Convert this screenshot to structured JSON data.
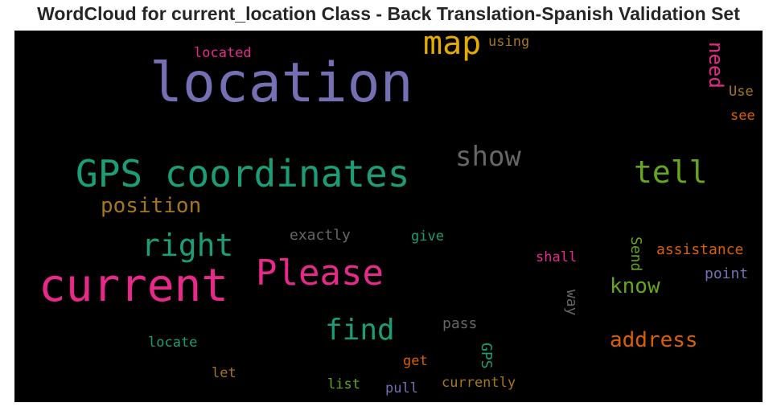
{
  "title": "WordCloud for current_location Class - Back Translation-Spanish Validation Set",
  "background_color": "#000000",
  "words": [
    {
      "key": "location",
      "text": "location",
      "color": "#7570b3"
    },
    {
      "key": "gps_coordinates",
      "text": "GPS coordinates",
      "color": "#1b9e77"
    },
    {
      "key": "current",
      "text": "current",
      "color": "#e7298a"
    },
    {
      "key": "please",
      "text": "Please",
      "color": "#e7298a"
    },
    {
      "key": "map",
      "text": "map",
      "color": "#e6ab02"
    },
    {
      "key": "show",
      "text": "show",
      "color": "#666666"
    },
    {
      "key": "tell",
      "text": "tell",
      "color": "#66a61e"
    },
    {
      "key": "right",
      "text": "right",
      "color": "#1b9e77"
    },
    {
      "key": "find",
      "text": "find",
      "color": "#1b9e77"
    },
    {
      "key": "position",
      "text": "position",
      "color": "#a6761d"
    },
    {
      "key": "know",
      "text": "know",
      "color": "#66a61e"
    },
    {
      "key": "address",
      "text": "address",
      "color": "#d95f02"
    },
    {
      "key": "need",
      "text": "need",
      "color": "#e7298a"
    },
    {
      "key": "exactly",
      "text": "exactly",
      "color": "#666666"
    },
    {
      "key": "give",
      "text": "give",
      "color": "#1b9e77"
    },
    {
      "key": "shall",
      "text": "shall",
      "color": "#e7298a"
    },
    {
      "key": "send",
      "text": "Send",
      "color": "#66a61e"
    },
    {
      "key": "assistance",
      "text": "assistance",
      "color": "#d95f02"
    },
    {
      "key": "point",
      "text": "point",
      "color": "#7570b3"
    },
    {
      "key": "way",
      "text": "way",
      "color": "#666666"
    },
    {
      "key": "pass",
      "text": "pass",
      "color": "#666666"
    },
    {
      "key": "gps",
      "text": "GPS",
      "color": "#1b9e77"
    },
    {
      "key": "locate",
      "text": "locate",
      "color": "#1b9e77"
    },
    {
      "key": "get",
      "text": "get",
      "color": "#d95f02"
    },
    {
      "key": "let",
      "text": "let",
      "color": "#a6761d"
    },
    {
      "key": "list",
      "text": "list",
      "color": "#66a61e"
    },
    {
      "key": "pull",
      "text": "pull",
      "color": "#7570b3"
    },
    {
      "key": "currently",
      "text": "currently",
      "color": "#a6761d"
    },
    {
      "key": "located",
      "text": "located",
      "color": "#e7298a"
    },
    {
      "key": "using",
      "text": "using",
      "color": "#a6761d"
    },
    {
      "key": "use",
      "text": "Use",
      "color": "#a6761d"
    },
    {
      "key": "see",
      "text": "see",
      "color": "#d95f02"
    }
  ]
}
